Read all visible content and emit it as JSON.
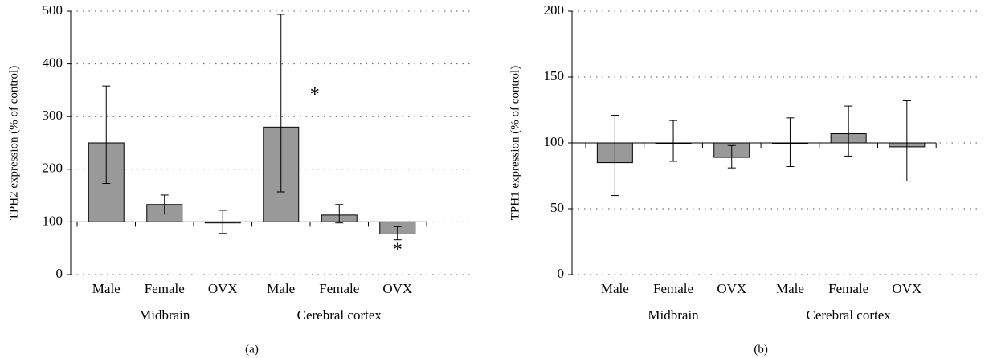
{
  "chart_data": [
    {
      "type": "bar",
      "ylabel": "TPH2 expression (% of control)",
      "sublabel": "(a)",
      "categories": [
        "Male",
        "Female",
        "OVX",
        "Male",
        "Female",
        "OVX"
      ],
      "groups": [
        "Midbrain",
        "Cerebral cortex"
      ],
      "values": [
        250,
        133,
        98,
        280,
        113,
        77
      ],
      "error_low": [
        173,
        115,
        78,
        157,
        98,
        66
      ],
      "error_high": [
        358,
        151,
        122,
        494,
        133,
        91
      ],
      "baseline": 100,
      "color": "#999999",
      "ylim": [
        0,
        500
      ],
      "yticks": [
        0,
        100,
        200,
        300,
        400,
        500
      ],
      "grid": true,
      "annotations": [
        {
          "text": "*",
          "category": 3,
          "value": 345
        },
        {
          "text": "*",
          "category": 5,
          "value": 50
        }
      ]
    },
    {
      "type": "bar",
      "ylabel": "TPH1 expression (% of control)",
      "sublabel": "(b)",
      "categories": [
        "Male",
        "Female",
        "OVX",
        "Male",
        "Female",
        "OVX"
      ],
      "groups": [
        "Midbrain",
        "Cerebral cortex"
      ],
      "values": [
        85,
        100,
        89,
        100,
        107,
        97
      ],
      "error_low": [
        60,
        86,
        81,
        82,
        90,
        71
      ],
      "error_high": [
        121,
        117,
        98,
        119,
        128,
        132
      ],
      "baseline": 100,
      "color": "#999999",
      "ylim": [
        0,
        200
      ],
      "yticks": [
        0,
        50,
        100,
        150,
        200
      ],
      "grid": true,
      "annotations": []
    }
  ]
}
